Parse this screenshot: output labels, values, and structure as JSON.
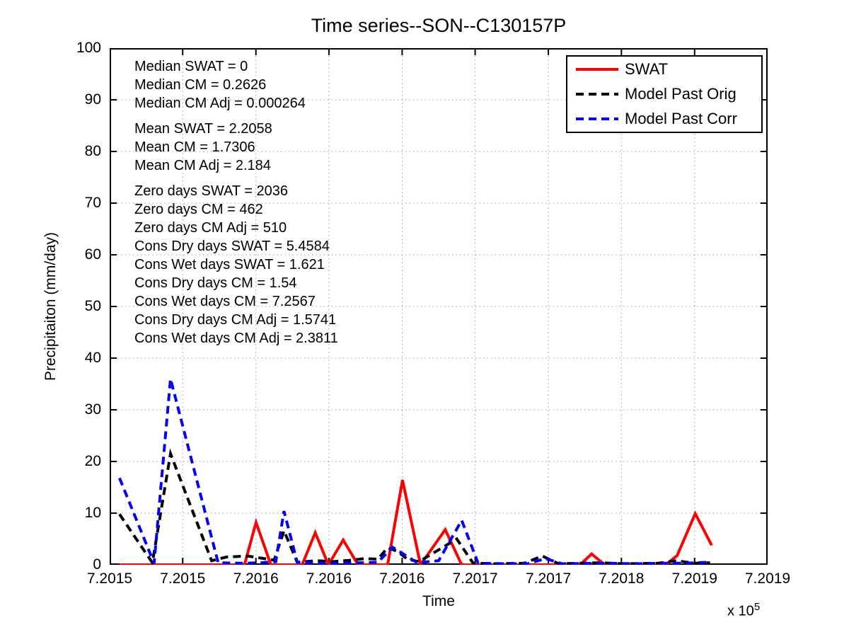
{
  "title": "Time series--SON--C130157P",
  "stats": {
    "group1": [
      "Median SWAT = 0",
      "Median CM = 0.2626",
      "Median CM Adj = 0.000264"
    ],
    "group2": [
      "Mean SWAT = 2.2058",
      "Mean CM = 1.7306",
      "Mean CM Adj = 2.184"
    ],
    "group3": [
      "Zero days SWAT = 2036",
      "Zero days CM = 462",
      "Zero days CM Adj = 510",
      "Cons Dry days SWAT = 5.4584",
      "Cons Wet days SWAT = 1.621",
      "Cons Dry days CM = 1.54",
      "Cons Wet days CM = 7.2567",
      "Cons Dry days CM Adj = 1.5741",
      "Cons Wet days CM Adj = 2.3811"
    ]
  },
  "legend": {
    "entries": [
      {
        "label": "SWAT"
      },
      {
        "label": "Model Past Orig"
      },
      {
        "label": "Model Past Corr"
      }
    ]
  },
  "axes": {
    "xlabel": "Time",
    "ylabel": "Precipitaiton (mm/day)",
    "x_multiplier_base": "x 10",
    "x_multiplier_exp": "5"
  },
  "chart_data": {
    "type": "line",
    "title": "Time series--SON--C130157P",
    "xlabel": "Time",
    "ylabel": "Precipitaiton (mm/day)",
    "x_axis_scale": "x 10^5",
    "xlim": [
      720150,
      720190
    ],
    "ylim": [
      0,
      100
    ],
    "grid": true,
    "legend_position": "top-right",
    "grid_color": "#999999",
    "axis_color": "#000000",
    "xtick_values": [
      720150,
      720154.44,
      720158.89,
      720163.33,
      720167.78,
      720172.22,
      720176.67,
      720181.11,
      720185.56,
      720190
    ],
    "xtick_labels": [
      "7.2015",
      "7.2015",
      "7.2016",
      "7.2016",
      "7.2016",
      "7.2017",
      "7.2017",
      "7.2018",
      "7.2019",
      "7.2019"
    ],
    "ytick_values": [
      0,
      10,
      20,
      30,
      40,
      50,
      60,
      70,
      80,
      90,
      100
    ],
    "ytick_labels": [
      "0",
      "10",
      "20",
      "30",
      "40",
      "50",
      "60",
      "70",
      "80",
      "90",
      "100"
    ],
    "series": [
      {
        "name": "SWAT",
        "color": "#ff0000",
        "style": "solid",
        "points": [
          [
            720150.6,
            0
          ],
          [
            720158.2,
            0
          ],
          [
            720158.9,
            8.2
          ],
          [
            720159.8,
            0
          ],
          [
            720161.7,
            0
          ],
          [
            720162.5,
            6.2
          ],
          [
            720163.3,
            0
          ],
          [
            720164.2,
            4.8
          ],
          [
            720165.1,
            0
          ],
          [
            720166.9,
            0
          ],
          [
            720167.8,
            16.4
          ],
          [
            720168.9,
            0
          ],
          [
            720170.4,
            6.8
          ],
          [
            720171.4,
            0
          ],
          [
            720178.6,
            0
          ],
          [
            720179.3,
            2.1
          ],
          [
            720180.1,
            0
          ],
          [
            720183.8,
            0
          ],
          [
            720184.5,
            1.8
          ],
          [
            720185.6,
            9.9
          ],
          [
            720186.6,
            3.8
          ]
        ]
      },
      {
        "name": "Model Past Orig",
        "color": "#000000",
        "style": "dashed",
        "points": [
          [
            720150.6,
            9.8
          ],
          [
            720152.6,
            0.4
          ],
          [
            720153.7,
            21.5
          ],
          [
            720156.2,
            0.8
          ],
          [
            720157.1,
            1.5
          ],
          [
            720158.4,
            1.7
          ],
          [
            720159.2,
            1.3
          ],
          [
            720160.0,
            0.9
          ],
          [
            720160.6,
            6.6
          ],
          [
            720161.4,
            0.5
          ],
          [
            720162.6,
            0.8
          ],
          [
            720163.5,
            0.6
          ],
          [
            720164.7,
            0.9
          ],
          [
            720165.5,
            1.2
          ],
          [
            720166.3,
            1.1
          ],
          [
            720166.9,
            3.3
          ],
          [
            720167.5,
            2.6
          ],
          [
            720168.1,
            1.1
          ],
          [
            720168.8,
            0.6
          ],
          [
            720171.1,
            5.0
          ],
          [
            720172.1,
            0.3
          ],
          [
            720173.4,
            0.2
          ],
          [
            720175.2,
            0.3
          ],
          [
            720176.3,
            1.7
          ],
          [
            720177.3,
            0.2
          ],
          [
            720179.9,
            0.4
          ],
          [
            720181.2,
            0.2
          ],
          [
            720183.3,
            0.3
          ],
          [
            720184.5,
            0.8
          ],
          [
            720185.5,
            0.3
          ],
          [
            720186.5,
            0.4
          ]
        ]
      },
      {
        "name": "Model Past Corr",
        "color": "#0000ff",
        "style": "dashed",
        "points": [
          [
            720150.6,
            16.8
          ],
          [
            720152.7,
            0.3
          ],
          [
            720153.7,
            36.0
          ],
          [
            720156.6,
            0.4
          ],
          [
            720158.0,
            0.3
          ],
          [
            720159.2,
            0.4
          ],
          [
            720160.1,
            0.6
          ],
          [
            720160.6,
            10.4
          ],
          [
            720161.4,
            0.5
          ],
          [
            720162.7,
            0.3
          ],
          [
            720164.0,
            0.3
          ],
          [
            720165.3,
            0.4
          ],
          [
            720166.3,
            0.5
          ],
          [
            720167.2,
            3.4
          ],
          [
            720167.8,
            2.2
          ],
          [
            720168.7,
            0.4
          ],
          [
            720170.0,
            0.8
          ],
          [
            720171.4,
            8.6
          ],
          [
            720172.4,
            0.3
          ],
          [
            720173.9,
            0.2
          ],
          [
            720175.4,
            0.2
          ],
          [
            720176.5,
            1.2
          ],
          [
            720177.5,
            0.2
          ],
          [
            720180.3,
            0.3
          ],
          [
            720182.0,
            0.2
          ],
          [
            720183.8,
            0.3
          ],
          [
            720185.0,
            0.3
          ],
          [
            720186.3,
            0.5
          ]
        ]
      }
    ]
  }
}
